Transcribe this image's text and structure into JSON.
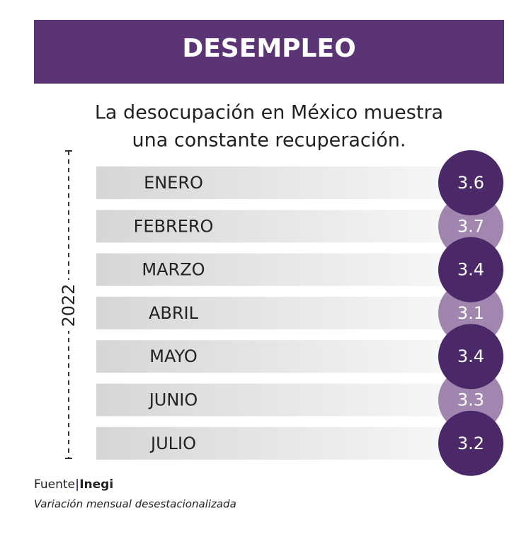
{
  "header": {
    "title": "DESEMPLEO"
  },
  "subtitle": [
    "La desocupación en México muestra",
    "una constante recuperación."
  ],
  "year": "2022",
  "rows": [
    {
      "month": "ENERO",
      "value": 3.6,
      "tone": "dark"
    },
    {
      "month": "FEBRERO",
      "value": 3.7,
      "tone": "light"
    },
    {
      "month": "MARZO",
      "value": 3.4,
      "tone": "dark"
    },
    {
      "month": "ABRIL",
      "value": 3.1,
      "tone": "light"
    },
    {
      "month": "MAYO",
      "value": 3.4,
      "tone": "dark"
    },
    {
      "month": "JUNIO",
      "value": 3.3,
      "tone": "light"
    },
    {
      "month": "JULIO",
      "value": 3.2,
      "tone": "dark"
    }
  ],
  "footer": {
    "source_label": "Fuente",
    "source": "Inegi",
    "note": "Variación mensual desestacionalizada"
  }
}
